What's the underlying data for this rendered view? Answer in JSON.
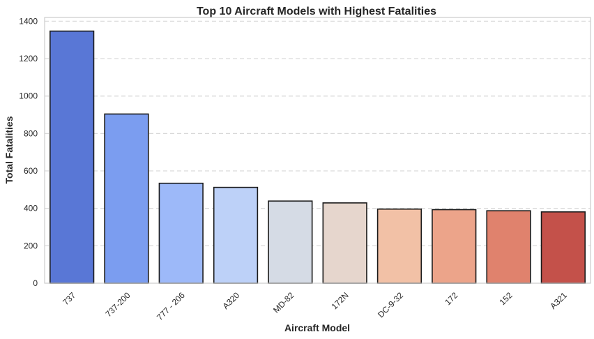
{
  "chart_data": {
    "type": "bar",
    "title": "Top 10 Aircraft Models with Highest Fatalities",
    "xlabel": "Aircraft Model",
    "ylabel": "Total Fatalities",
    "categories": [
      "737",
      "737-200",
      "777 - 206",
      "A320",
      "MD-82",
      "172N",
      "DC-9-32",
      "172",
      "152",
      "A321"
    ],
    "values": [
      1347,
      904,
      534,
      512,
      439,
      429,
      396,
      393,
      387,
      381
    ],
    "ylim": [
      0,
      1420
    ],
    "yticks": [
      0,
      200,
      400,
      600,
      800,
      1000,
      1200,
      1400
    ],
    "grid": true,
    "colors": [
      "#5977d6",
      "#7b9df0",
      "#9db9f9",
      "#bdd1f8",
      "#d5dbe5",
      "#e6d6cd",
      "#f2c1a6",
      "#eca48a",
      "#e0826d",
      "#c4514a"
    ]
  }
}
